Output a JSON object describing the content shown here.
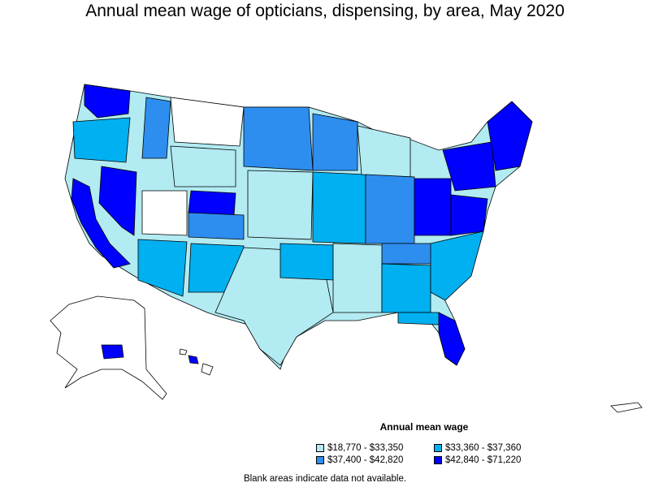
{
  "title": "Annual mean wage of opticians, dispensing, by area, May 2020",
  "legend": {
    "title": "Annual mean wage",
    "items": [
      {
        "label": "$18,770 - $33,350",
        "color": "#b2ebf2"
      },
      {
        "label": "$33,360 - $37,360",
        "color": "#00b0f0"
      },
      {
        "label": "$37,400 - $42,820",
        "color": "#2e8ef0"
      },
      {
        "label": "$42,840 - $71,220",
        "color": "#0000ff"
      }
    ]
  },
  "note": "Blank areas indicate data not available.",
  "colors": {
    "outline": "#000000",
    "blank": "#ffffff"
  }
}
